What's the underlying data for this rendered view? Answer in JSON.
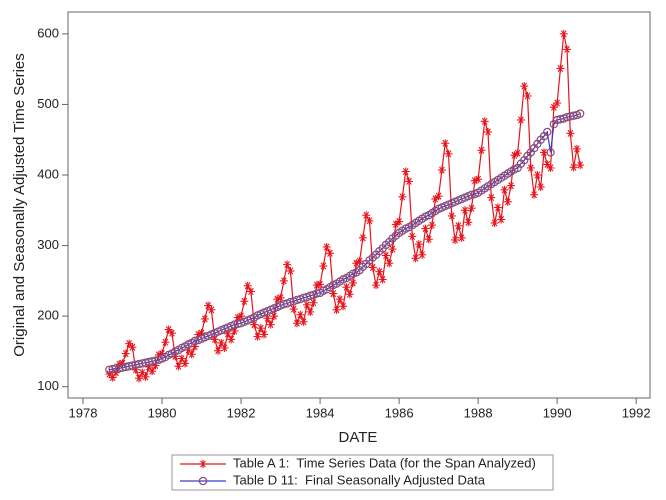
{
  "chart_data": {
    "type": "line",
    "x_label": "DATE",
    "y_label": "Original and Seasonally Adjusted Time Series",
    "xlim": [
      1977.62,
      1992.35
    ],
    "xticks": [
      1978,
      1980,
      1982,
      1984,
      1986,
      1988,
      1990,
      1992
    ],
    "ylim": [
      84,
      631
    ],
    "yticks": [
      100,
      200,
      300,
      400,
      500,
      600
    ],
    "x": [
      1978.667,
      1978.75,
      1978.833,
      1978.917,
      1979,
      1979.083,
      1979.167,
      1979.25,
      1979.333,
      1979.417,
      1979.5,
      1979.583,
      1979.667,
      1979.75,
      1979.833,
      1979.917,
      1980,
      1980.083,
      1980.167,
      1980.25,
      1980.333,
      1980.417,
      1980.5,
      1980.583,
      1980.667,
      1980.75,
      1980.833,
      1980.917,
      1981,
      1981.083,
      1981.167,
      1981.25,
      1981.333,
      1981.417,
      1981.5,
      1981.583,
      1981.667,
      1981.75,
      1981.833,
      1981.917,
      1982,
      1982.083,
      1982.167,
      1982.25,
      1982.333,
      1982.417,
      1982.5,
      1982.583,
      1982.667,
      1982.75,
      1982.833,
      1982.917,
      1983,
      1983.083,
      1983.167,
      1983.25,
      1983.333,
      1983.417,
      1983.5,
      1983.583,
      1983.667,
      1983.75,
      1983.833,
      1983.917,
      1984,
      1984.083,
      1984.167,
      1984.25,
      1984.333,
      1984.417,
      1984.5,
      1984.583,
      1984.667,
      1984.75,
      1984.833,
      1984.917,
      1985,
      1985.083,
      1985.167,
      1985.25,
      1985.333,
      1985.417,
      1985.5,
      1985.583,
      1985.667,
      1985.75,
      1985.833,
      1985.917,
      1986,
      1986.083,
      1986.167,
      1986.25,
      1986.333,
      1986.417,
      1986.5,
      1986.583,
      1986.667,
      1986.75,
      1986.833,
      1986.917,
      1987,
      1987.083,
      1987.167,
      1987.25,
      1987.333,
      1987.417,
      1987.5,
      1987.583,
      1987.667,
      1987.75,
      1987.833,
      1987.917,
      1988,
      1988.083,
      1988.167,
      1988.25,
      1988.333,
      1988.417,
      1988.5,
      1988.583,
      1988.667,
      1988.75,
      1988.833,
      1988.917,
      1989,
      1989.083,
      1989.167,
      1989.25,
      1989.333,
      1989.417,
      1989.5,
      1989.583,
      1989.667,
      1989.75,
      1989.833,
      1989.917,
      1990,
      1990.083,
      1990.167,
      1990.25,
      1990.333,
      1990.417,
      1990.5,
      1990.583
    ],
    "series": [
      {
        "name": "Table A 1:  Time Series Data (for the Span Analyzed)",
        "color": "#e8141c",
        "marker": "asterisk",
        "values": [
          118,
          113,
          120,
          132,
          133,
          147,
          161,
          156,
          124,
          112,
          120,
          114,
          128,
          122,
          130,
          145,
          147,
          163,
          181,
          176,
          143,
          129,
          140,
          133,
          152,
          146,
          157,
          174,
          176,
          196,
          215,
          209,
          167,
          151,
          162,
          155,
          175,
          167,
          179,
          198,
          200,
          221,
          243,
          235,
          188,
          171,
          183,
          174,
          197,
          188,
          200,
          224,
          226,
          250,
          273,
          264,
          210,
          190,
          202,
          192,
          216,
          206,
          219,
          244,
          245,
          271,
          298,
          289,
          232,
          209,
          224,
          214,
          241,
          231,
          247,
          275,
          278,
          311,
          343,
          335,
          269,
          244,
          263,
          252,
          286,
          275,
          295,
          330,
          334,
          369,
          405,
          391,
          313,
          282,
          302,
          287,
          324,
          309,
          329,
          366,
          370,
          407,
          445,
          430,
          342,
          308,
          328,
          311,
          350,
          333,
          353,
          392,
          394,
          435,
          476,
          461,
          368,
          332,
          354,
          337,
          379,
          362,
          385,
          428,
          431,
          478,
          526,
          512,
          410,
          372,
          400,
          383,
          432,
          415,
          410,
          496,
          502,
          551,
          600,
          578,
          459,
          411,
          437,
          414
        ]
      },
      {
        "name": "Table D 11:  Final Seasonally Adjusted Data",
        "color": "#3a3ad0",
        "marker": "circle",
        "marker_color": "#8a4a78",
        "values": [
          124,
          125,
          126,
          126,
          127,
          128,
          129,
          130,
          131,
          132,
          133,
          134,
          135,
          136,
          137,
          138,
          140,
          142,
          145,
          147,
          150,
          152,
          155,
          157,
          160,
          162,
          165,
          166,
          168,
          170,
          172,
          174,
          176,
          178,
          180,
          182,
          184,
          186,
          188,
          189,
          190,
          192,
          194,
          196,
          198,
          201,
          203,
          205,
          207,
          209,
          211,
          213,
          215,
          217,
          218,
          220,
          221,
          223,
          224,
          226,
          227,
          229,
          230,
          232,
          233,
          236,
          238,
          241,
          244,
          246,
          249,
          252,
          254,
          257,
          260,
          262,
          265,
          270,
          274,
          279,
          283,
          287,
          292,
          296,
          301,
          305,
          310,
          314,
          318,
          321,
          324,
          326,
          329,
          332,
          335,
          338,
          341,
          343,
          346,
          349,
          352,
          354,
          356,
          358,
          360,
          362,
          364,
          366,
          368,
          370,
          372,
          373,
          375,
          378,
          381,
          384,
          387,
          390,
          393,
          396,
          399,
          402,
          405,
          408,
          410,
          416,
          421,
          427,
          432,
          438,
          444,
          450,
          455,
          461,
          432,
          472,
          478,
          479,
          480,
          482,
          483,
          484,
          485,
          487
        ]
      }
    ]
  }
}
